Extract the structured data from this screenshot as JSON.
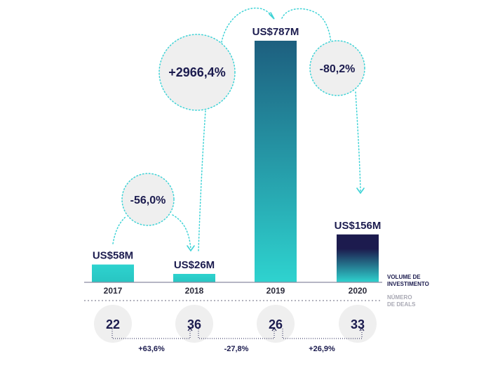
{
  "chart_data": {
    "type": "bar",
    "categories": [
      "2017",
      "2018",
      "2019",
      "2020"
    ],
    "values": [
      58,
      26,
      787,
      156
    ],
    "value_labels": [
      "US$58M",
      "US$26M",
      "US$787M",
      "US$156M"
    ],
    "ylim": [
      0,
      787
    ],
    "changes": [
      "-56,0%",
      "+2966,4%",
      "-80,2%"
    ],
    "deals": [
      22,
      36,
      26,
      33
    ],
    "deal_changes": [
      "+63,6%",
      "-27,8%",
      "+26,9%"
    ],
    "volume_label": [
      "VOLUME DE",
      "INVESTIMENTO"
    ],
    "deals_label": [
      "NÚMERO",
      "DE DEALS"
    ],
    "colors": {
      "bar_teal": "#2ed3cf",
      "bar_dark": "#1c1b4e",
      "bar_mid": "#1d5f7f",
      "circle_fill": "#efefef",
      "dots": "#3fd3d6",
      "text": "#1c1c4f"
    }
  }
}
